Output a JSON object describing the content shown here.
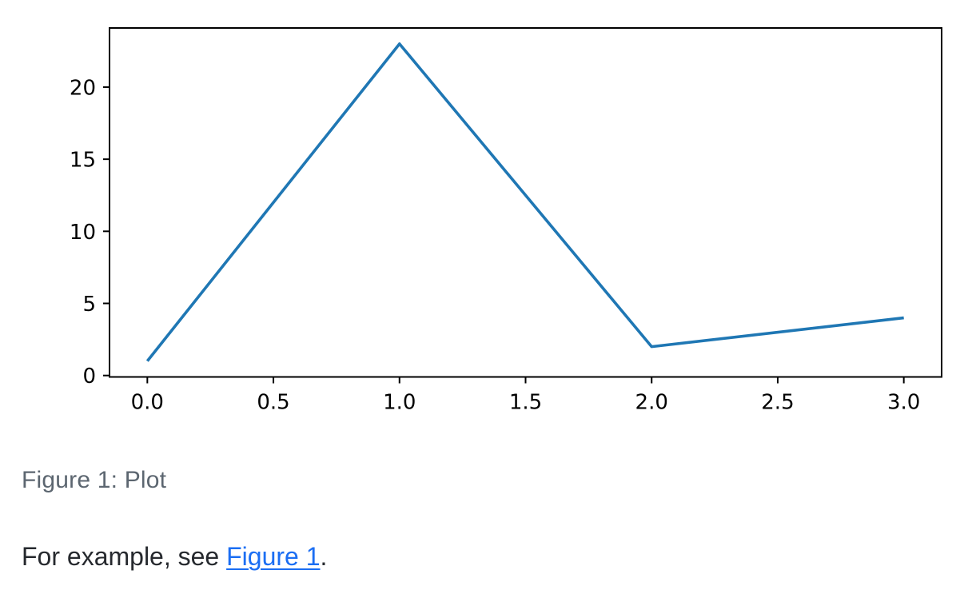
{
  "document": {
    "caption": "Figure 1: Plot",
    "paragraph": {
      "prefix": "For example, see ",
      "link_text": "Figure 1",
      "suffix": "."
    },
    "colors": {
      "body_text": "#26292e",
      "caption_text": "#5c6670",
      "link": "#1b6ef3"
    }
  },
  "chart_data": {
    "type": "line",
    "title": "",
    "xlabel": "",
    "ylabel": "",
    "x": [
      0,
      1,
      2,
      3
    ],
    "y": [
      1,
      23,
      2,
      4
    ],
    "x_tick_labels": [
      "0.0",
      "0.5",
      "1.0",
      "1.5",
      "2.0",
      "2.5",
      "3.0"
    ],
    "y_tick_labels": [
      "0",
      "5",
      "10",
      "15",
      "20"
    ],
    "xlim": [
      -0.15,
      3.15
    ],
    "ylim": [
      -0.1,
      24.1
    ],
    "grid": false,
    "legend": false,
    "line_color": "#1f77b4",
    "axis_color": "#000000"
  }
}
